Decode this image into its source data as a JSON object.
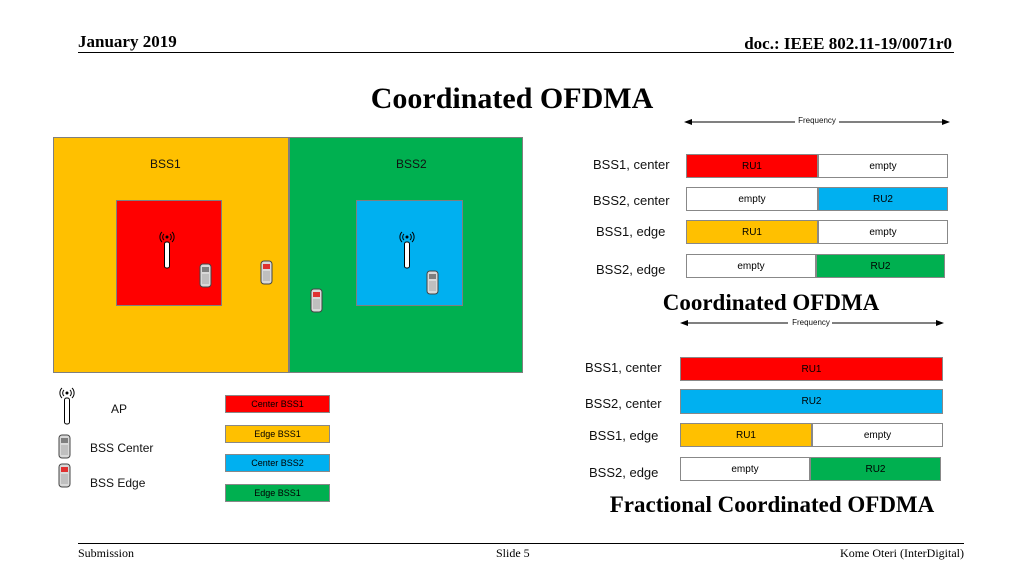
{
  "header": {
    "date": "January 2019",
    "doc": "doc.: IEEE 802.11-19/0071r0"
  },
  "titles": {
    "main": "Coordinated OFDMA",
    "second": "Coordinated OFDMA",
    "third": "Fractional Coordinated OFDMA"
  },
  "frequency_label": "Frequency",
  "diagram": {
    "bss1_label": "BSS1",
    "bss2_label": "BSS2"
  },
  "colors": {
    "bss1": "#FFC000",
    "bss2": "#00B050",
    "center_bss1": "#FF0000",
    "center_bss2": "#00B0F0",
    "empty": "#FFFFFF"
  },
  "legend": {
    "ap": "AP",
    "bss_center": "BSS Center",
    "bss_edge": "BSS Edge",
    "center_bss1": "Center BSS1",
    "edge_bss1": "Edge BSS1",
    "center_bss2": "Center BSS2",
    "edge_bss1_green": "Edge BSS1"
  },
  "table1": {
    "rows": [
      {
        "label": "BSS1, center",
        "left": "RU1",
        "right": "empty"
      },
      {
        "label": "BSS2, center",
        "left": "empty",
        "right": "RU2"
      },
      {
        "label": "BSS1, edge",
        "left": "RU1",
        "right": "empty"
      },
      {
        "label": "BSS2, edge",
        "left": "empty",
        "right": "RU2"
      }
    ]
  },
  "table2": {
    "rows": [
      {
        "label": "BSS1, center",
        "full": "RU1"
      },
      {
        "label": "BSS2, center",
        "full": "RU2"
      },
      {
        "label": "BSS1, edge",
        "left": "RU1",
        "right": "empty"
      },
      {
        "label": "BSS2, edge",
        "left": "empty",
        "right": "RU2"
      }
    ]
  },
  "footer": {
    "left": "Submission",
    "center": "Slide 5",
    "right": "Kome Oteri (InterDigital)"
  }
}
